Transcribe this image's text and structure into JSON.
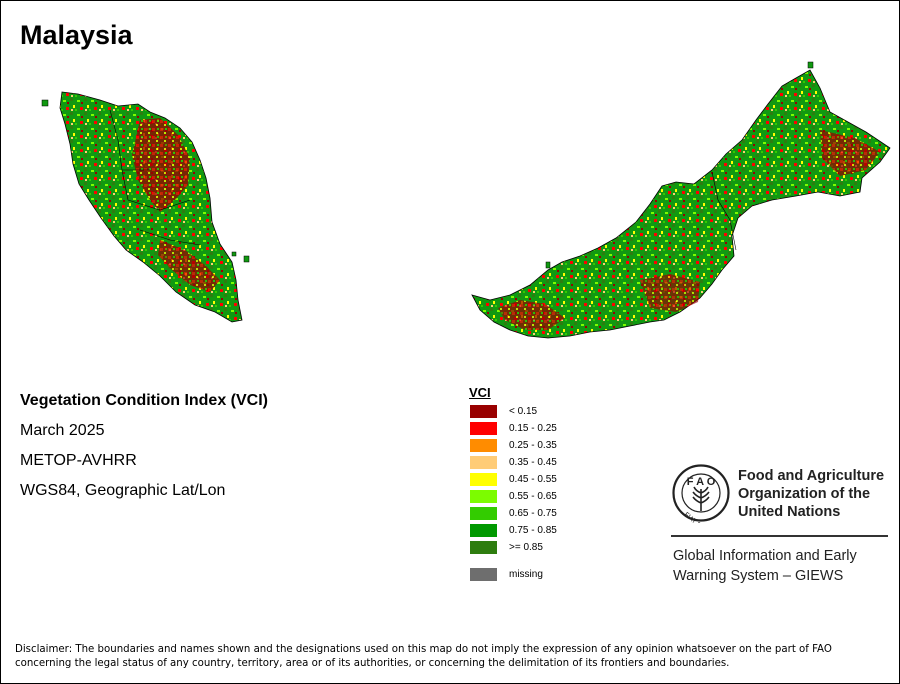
{
  "title": "Malaysia",
  "info": {
    "index_name": "Vegetation Condition Index (VCI)",
    "period": "March 2025",
    "sensor": "METOP-AVHRR",
    "projection": "WGS84, Geographic Lat/Lon"
  },
  "legend": {
    "title": "VCI",
    "classes": [
      {
        "label": "< 0.15",
        "color": "#990000"
      },
      {
        "label": "0.15 - 0.25",
        "color": "#ff0000"
      },
      {
        "label": "0.25 - 0.35",
        "color": "#ff8c00"
      },
      {
        "label": "0.35 - 0.45",
        "color": "#ffcc77"
      },
      {
        "label": "0.45 - 0.55",
        "color": "#ffff00"
      },
      {
        "label": "0.55 - 0.65",
        "color": "#7cfc00"
      },
      {
        "label": "0.65 - 0.75",
        "color": "#33cc00"
      },
      {
        "label": "0.75 - 0.85",
        "color": "#009900"
      },
      {
        "label": ">= 0.85",
        "color": "#2e7d0f"
      }
    ],
    "missing": {
      "label": "missing",
      "color": "#6e6e6e"
    }
  },
  "fao": {
    "logo_text": "FIAT PANIS",
    "name_line1": "Food and Agriculture",
    "name_line2": "Organization of the",
    "name_line3": "United Nations",
    "giews_line1": "Global Information and Early",
    "giews_line2": "Warning System – GIEWS"
  },
  "disclaimer": "Disclaimer: The boundaries and names shown and the designations used on this map do not imply the expression of any opinion whatsoever on the part of FAO concerning the legal status of any country, territory, area or of its authorities, or concerning the delimitation of its frontiers and boundaries."
}
